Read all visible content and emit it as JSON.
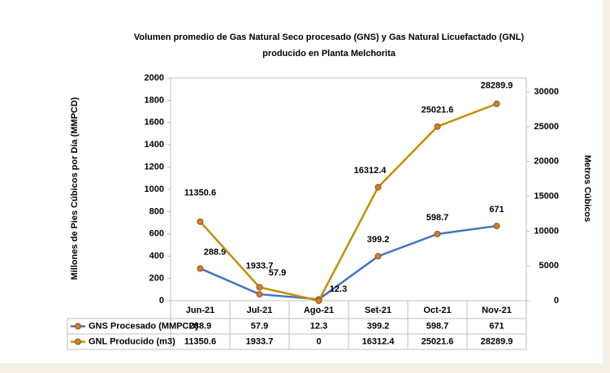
{
  "chart_data": {
    "type": "line",
    "title": [
      "Volumen promedio de Gas Natural Seco procesado (GNS) y Gas Natural Licuefactado (GNL)",
      "producido en Planta Melchorita"
    ],
    "y_label": "Millones de Pies Cúbicos por Día (MMPCD)",
    "y2_label": "Metros Cúbicos",
    "categories": [
      "Jun-21",
      "Jul-21",
      "Ago-21",
      "Set-21",
      "Oct-21",
      "Nov-21"
    ],
    "series": [
      {
        "name": "GNS Procesado (MMPCD)",
        "color": "#4472c4",
        "values": [
          288.9,
          57.9,
          12.3,
          399.2,
          598.7,
          671
        ]
      },
      {
        "name": "GNL Producido (m3)",
        "color": "#bf9000",
        "axis": "y2",
        "values": [
          11350.6,
          1933.7,
          0,
          16312.4,
          25021.6,
          28289.9
        ]
      }
    ],
    "ylim": [
      0,
      2000
    ],
    "yticks": [
      0,
      200,
      400,
      600,
      800,
      1000,
      1200,
      1400,
      1600,
      1800,
      2000
    ],
    "y2lim": [
      0,
      32000
    ],
    "y2ticks": [
      0,
      5000,
      10000,
      15000,
      20000,
      25000,
      30000
    ],
    "grid": false
  }
}
